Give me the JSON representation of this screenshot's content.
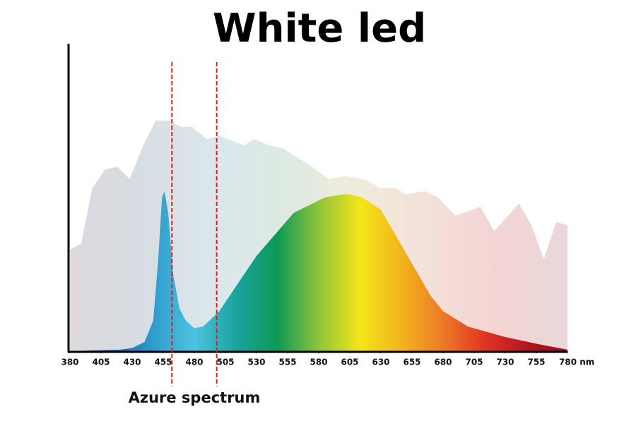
{
  "chart_data": {
    "type": "area",
    "title": "White led",
    "series": [
      {
        "name": null,
        "colors": [
          "#d8d2d6",
          "#cfd7de",
          "#d5e3ea",
          "#d6e6dc",
          "#ede9d4",
          "#f1dcd2",
          "#f3cccb",
          "#e4d2d4"
        ],
        "opacity": 0.85,
        "x": [
          380,
          389,
          398,
          408,
          418,
          428,
          439,
          449,
          460,
          469,
          478,
          490,
          500,
          520,
          528,
          540,
          551,
          571,
          588,
          602,
          616,
          630,
          642,
          650,
          665,
          676,
          690,
          710,
          721,
          741,
          751,
          761,
          771,
          780
        ],
        "values": [
          33,
          35,
          53,
          59,
          60,
          56,
          67,
          75,
          75,
          73,
          73,
          69,
          70,
          67,
          69,
          67,
          66,
          61,
          56,
          57,
          56,
          53,
          53,
          51,
          52,
          50,
          44,
          47,
          39,
          48,
          41,
          30,
          42,
          41
        ]
      },
      {
        "name": null,
        "colors": [
          "#1f3f86",
          "#1f5fa0",
          "#2f9ccc",
          "#4cc3e0",
          "#1aa3a0",
          "#0c9a55",
          "#8fc43a",
          "#f5e51a",
          "#f2b41c",
          "#ee7a27",
          "#e03524",
          "#b01722",
          "#8c1020"
        ],
        "opacity": 1,
        "x": [
          380,
          420,
          430,
          440,
          447,
          451,
          454,
          456,
          459,
          463,
          468,
          473,
          480,
          487,
          500,
          530,
          560,
          585,
          600,
          605,
          615,
          630,
          650,
          670,
          680,
          700,
          730,
          760,
          780
        ],
        "values": [
          0,
          0.5,
          1,
          3,
          10,
          30,
          50,
          52,
          45,
          25,
          14,
          10,
          7.5,
          8,
          13,
          31,
          45,
          50,
          51,
          51,
          50,
          46,
          32,
          18,
          13,
          8,
          4.6,
          2,
          0.5
        ]
      }
    ],
    "xlim": [
      380,
      780
    ],
    "ylim": [
      0,
      100
    ],
    "xticks": [
      380,
      405,
      430,
      455,
      480,
      505,
      530,
      555,
      580,
      605,
      630,
      655,
      680,
      705,
      730,
      755,
      {
        "value": 780,
        "label": "780 nm"
      }
    ],
    "band": {
      "range": [
        462,
        498
      ],
      "label": "Azure spectrum",
      "color": "#e0201c"
    }
  }
}
